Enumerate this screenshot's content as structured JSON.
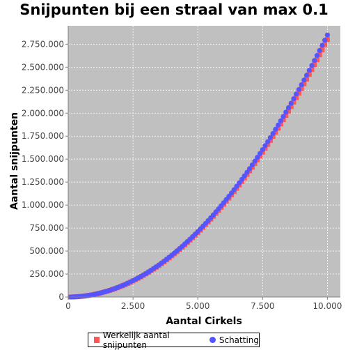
{
  "chart_data": {
    "type": "scatter",
    "title": "Snijpunten bij een straal van max 0.1",
    "xlabel": "Aantal Cirkels",
    "ylabel": "Aantal snijpunten",
    "xlim": [
      0,
      10500
    ],
    "ylim": [
      0,
      2950000
    ],
    "grid": true,
    "legend_position": "bottom",
    "x_ticks": [
      {
        "value": 0,
        "label": "0"
      },
      {
        "value": 2500,
        "label": "2.500"
      },
      {
        "value": 5000,
        "label": "5.000"
      },
      {
        "value": 7500,
        "label": "7.500"
      },
      {
        "value": 10000,
        "label": "10.000"
      }
    ],
    "y_ticks": [
      {
        "value": 0,
        "label": "0"
      },
      {
        "value": 250000,
        "label": "250.000"
      },
      {
        "value": 500000,
        "label": "500.000"
      },
      {
        "value": 750000,
        "label": "750.000"
      },
      {
        "value": 1000000,
        "label": "1.000.000"
      },
      {
        "value": 1250000,
        "label": "1.250.000"
      },
      {
        "value": 1500000,
        "label": "1.500.000"
      },
      {
        "value": 1750000,
        "label": "1.750.000"
      },
      {
        "value": 2000000,
        "label": "2.000.000"
      },
      {
        "value": 2250000,
        "label": "2.250.000"
      },
      {
        "value": 2500000,
        "label": "2.500.000"
      },
      {
        "value": 2750000,
        "label": "2.750.000"
      }
    ],
    "x": [
      100,
      200,
      300,
      400,
      500,
      600,
      700,
      800,
      900,
      1000,
      1100,
      1200,
      1300,
      1400,
      1500,
      1600,
      1700,
      1800,
      1900,
      2000,
      2100,
      2200,
      2300,
      2400,
      2500,
      2600,
      2700,
      2800,
      2900,
      3000,
      3100,
      3200,
      3300,
      3400,
      3500,
      3600,
      3700,
      3800,
      3900,
      4000,
      4100,
      4200,
      4300,
      4400,
      4500,
      4600,
      4700,
      4800,
      4900,
      5000,
      5100,
      5200,
      5300,
      5400,
      5500,
      5600,
      5700,
      5800,
      5900,
      6000,
      6100,
      6200,
      6300,
      6400,
      6500,
      6600,
      6700,
      6800,
      6900,
      7000,
      7100,
      7200,
      7300,
      7400,
      7500,
      7600,
      7700,
      7800,
      7900,
      8000,
      8100,
      8200,
      8300,
      8400,
      8500,
      8600,
      8700,
      8800,
      8900,
      9000,
      9100,
      9200,
      9300,
      9400,
      9500,
      9600,
      9700,
      9800,
      9900,
      10000
    ],
    "series": [
      {
        "name": "Werkelijk aantal snijpunten",
        "marker": "square",
        "color": "#ff5555",
        "values": [
          280,
          1120,
          2520,
          4480,
          7000,
          10080,
          13720,
          17920,
          22680,
          28000,
          33880,
          40320,
          47320,
          54880,
          63000,
          71680,
          80920,
          90720,
          101080,
          112000,
          123480,
          135520,
          148120,
          161280,
          175000,
          189280,
          204120,
          219520,
          235480,
          252000,
          269080,
          286720,
          304920,
          323680,
          343000,
          362880,
          383320,
          404320,
          425880,
          448000,
          470680,
          493920,
          517720,
          542080,
          567000,
          592480,
          618520,
          645120,
          672280,
          700000,
          728280,
          757120,
          786520,
          816480,
          847000,
          878080,
          909720,
          941920,
          974680,
          1008000,
          1041880,
          1076320,
          1111320,
          1146880,
          1183000,
          1219680,
          1256920,
          1294720,
          1333080,
          1372000,
          1411480,
          1451520,
          1492120,
          1533280,
          1575000,
          1617280,
          1660120,
          1703520,
          1747480,
          1792000,
          1837080,
          1882720,
          1928920,
          1975680,
          2023000,
          2070880,
          2119320,
          2168320,
          2217880,
          2268000,
          2318680,
          2369920,
          2421720,
          2474080,
          2527000,
          2580480,
          2634520,
          2689120,
          2744280,
          2800000
        ]
      },
      {
        "name": "Schatting",
        "marker": "circle",
        "color": "#5555ff",
        "values": [
          285,
          1140,
          2565,
          4560,
          7125,
          10260,
          13965,
          18240,
          23085,
          28500,
          34485,
          41040,
          48165,
          55860,
          64125,
          72960,
          82365,
          92340,
          102885,
          114000,
          125685,
          137940,
          150765,
          164160,
          178125,
          192660,
          207765,
          223440,
          239685,
          256500,
          273885,
          291840,
          310365,
          329460,
          349125,
          369360,
          390165,
          411540,
          433485,
          456000,
          479085,
          502740,
          526965,
          551760,
          577125,
          603060,
          629565,
          656640,
          684285,
          712500,
          741285,
          770640,
          800565,
          831060,
          862125,
          893760,
          925965,
          958740,
          992085,
          1026000,
          1060485,
          1095540,
          1131165,
          1167360,
          1204125,
          1241460,
          1279365,
          1317840,
          1356885,
          1396500,
          1436685,
          1477440,
          1518765,
          1560660,
          1603125,
          1646160,
          1689765,
          1733940,
          1778685,
          1824000,
          1869885,
          1916340,
          1963365,
          2010960,
          2059125,
          2107860,
          2157165,
          2207040,
          2257485,
          2308500,
          2360085,
          2412240,
          2464965,
          2518260,
          2572125,
          2626560,
          2681565,
          2737140,
          2793285,
          2850000
        ]
      }
    ]
  }
}
